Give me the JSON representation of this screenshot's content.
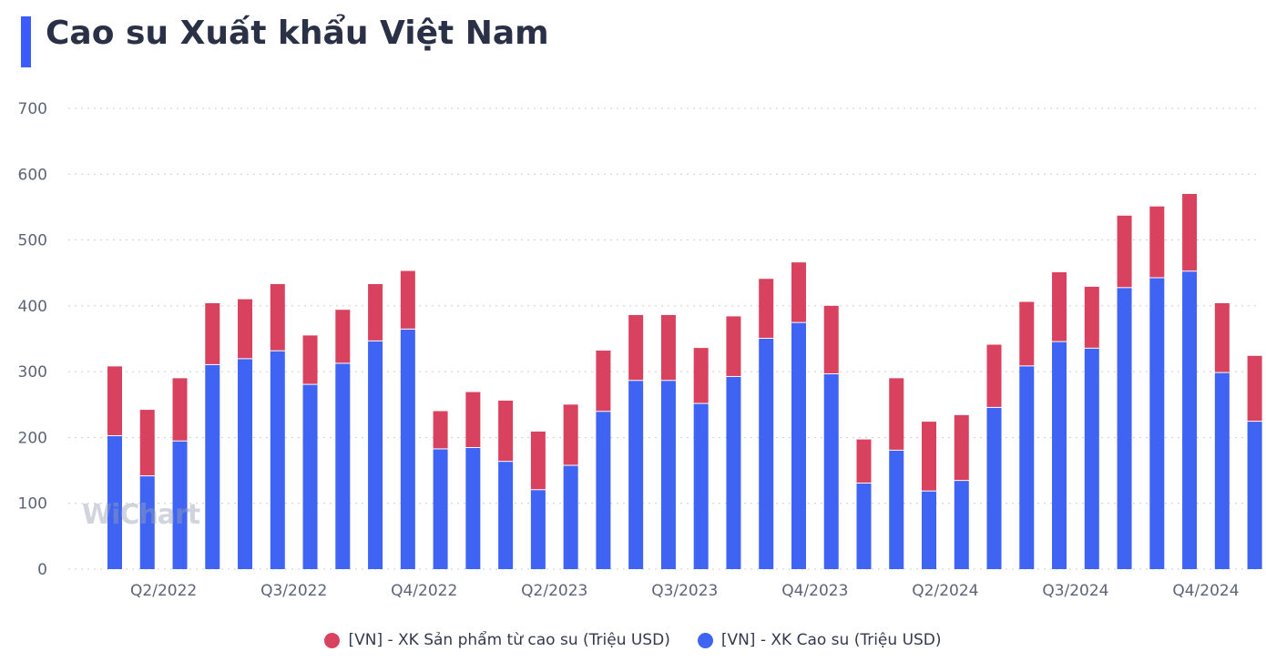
{
  "title": "Cao su Xuất khẩu Việt Nam",
  "watermark": "WiChart",
  "colors": {
    "accent": "#3b5bfd",
    "product": "#d9425e",
    "rubber": "#3f63f3",
    "grid": "#c9ccd4"
  },
  "legend": [
    {
      "label": "[VN] - XK Sản phẩm từ cao su (Triệu USD)",
      "color": "#d9425e"
    },
    {
      "label": "[VN] - XK Cao su (Triệu USD)",
      "color": "#3f63f3"
    }
  ],
  "chart_data": {
    "type": "bar",
    "stacked": true,
    "title": "Cao su Xuất khẩu Việt Nam",
    "ylim": [
      0,
      700
    ],
    "yticks": [
      0,
      100,
      200,
      300,
      400,
      500,
      600,
      700
    ],
    "grid": true,
    "legend_position": "bottom",
    "x_tick_labels": [
      {
        "index": 1.5,
        "label": "Q2/2022"
      },
      {
        "index": 5.5,
        "label": "Q3/2022"
      },
      {
        "index": 9.5,
        "label": "Q4/2022"
      },
      {
        "index": 13.5,
        "label": "Q2/2023"
      },
      {
        "index": 17.5,
        "label": "Q3/2023"
      },
      {
        "index": 21.5,
        "label": "Q4/2023"
      },
      {
        "index": 25.5,
        "label": "Q2/2024"
      },
      {
        "index": 29.5,
        "label": "Q3/2024"
      },
      {
        "index": 33.5,
        "label": "Q4/2024"
      }
    ],
    "series": [
      {
        "name": "[VN] - XK Cao su (Triệu USD)",
        "color": "#3f63f3",
        "values": [
          202,
          141,
          194,
          310,
          319,
          331,
          280,
          312,
          346,
          364,
          182,
          184,
          163,
          120,
          157,
          239,
          286,
          286,
          251,
          292,
          350,
          374,
          296,
          130,
          180,
          118,
          134,
          245,
          308,
          345,
          335,
          427,
          442,
          452,
          298,
          224
        ]
      },
      {
        "name": "[VN] - XK Sản phẩm từ cao su (Triệu USD)",
        "color": "#d9425e",
        "values": [
          106,
          101,
          96,
          94,
          91,
          102,
          75,
          82,
          87,
          89,
          58,
          85,
          93,
          89,
          93,
          93,
          100,
          100,
          85,
          92,
          91,
          92,
          104,
          67,
          110,
          106,
          100,
          96,
          98,
          106,
          94,
          110,
          109,
          118,
          106,
          100
        ]
      }
    ]
  }
}
